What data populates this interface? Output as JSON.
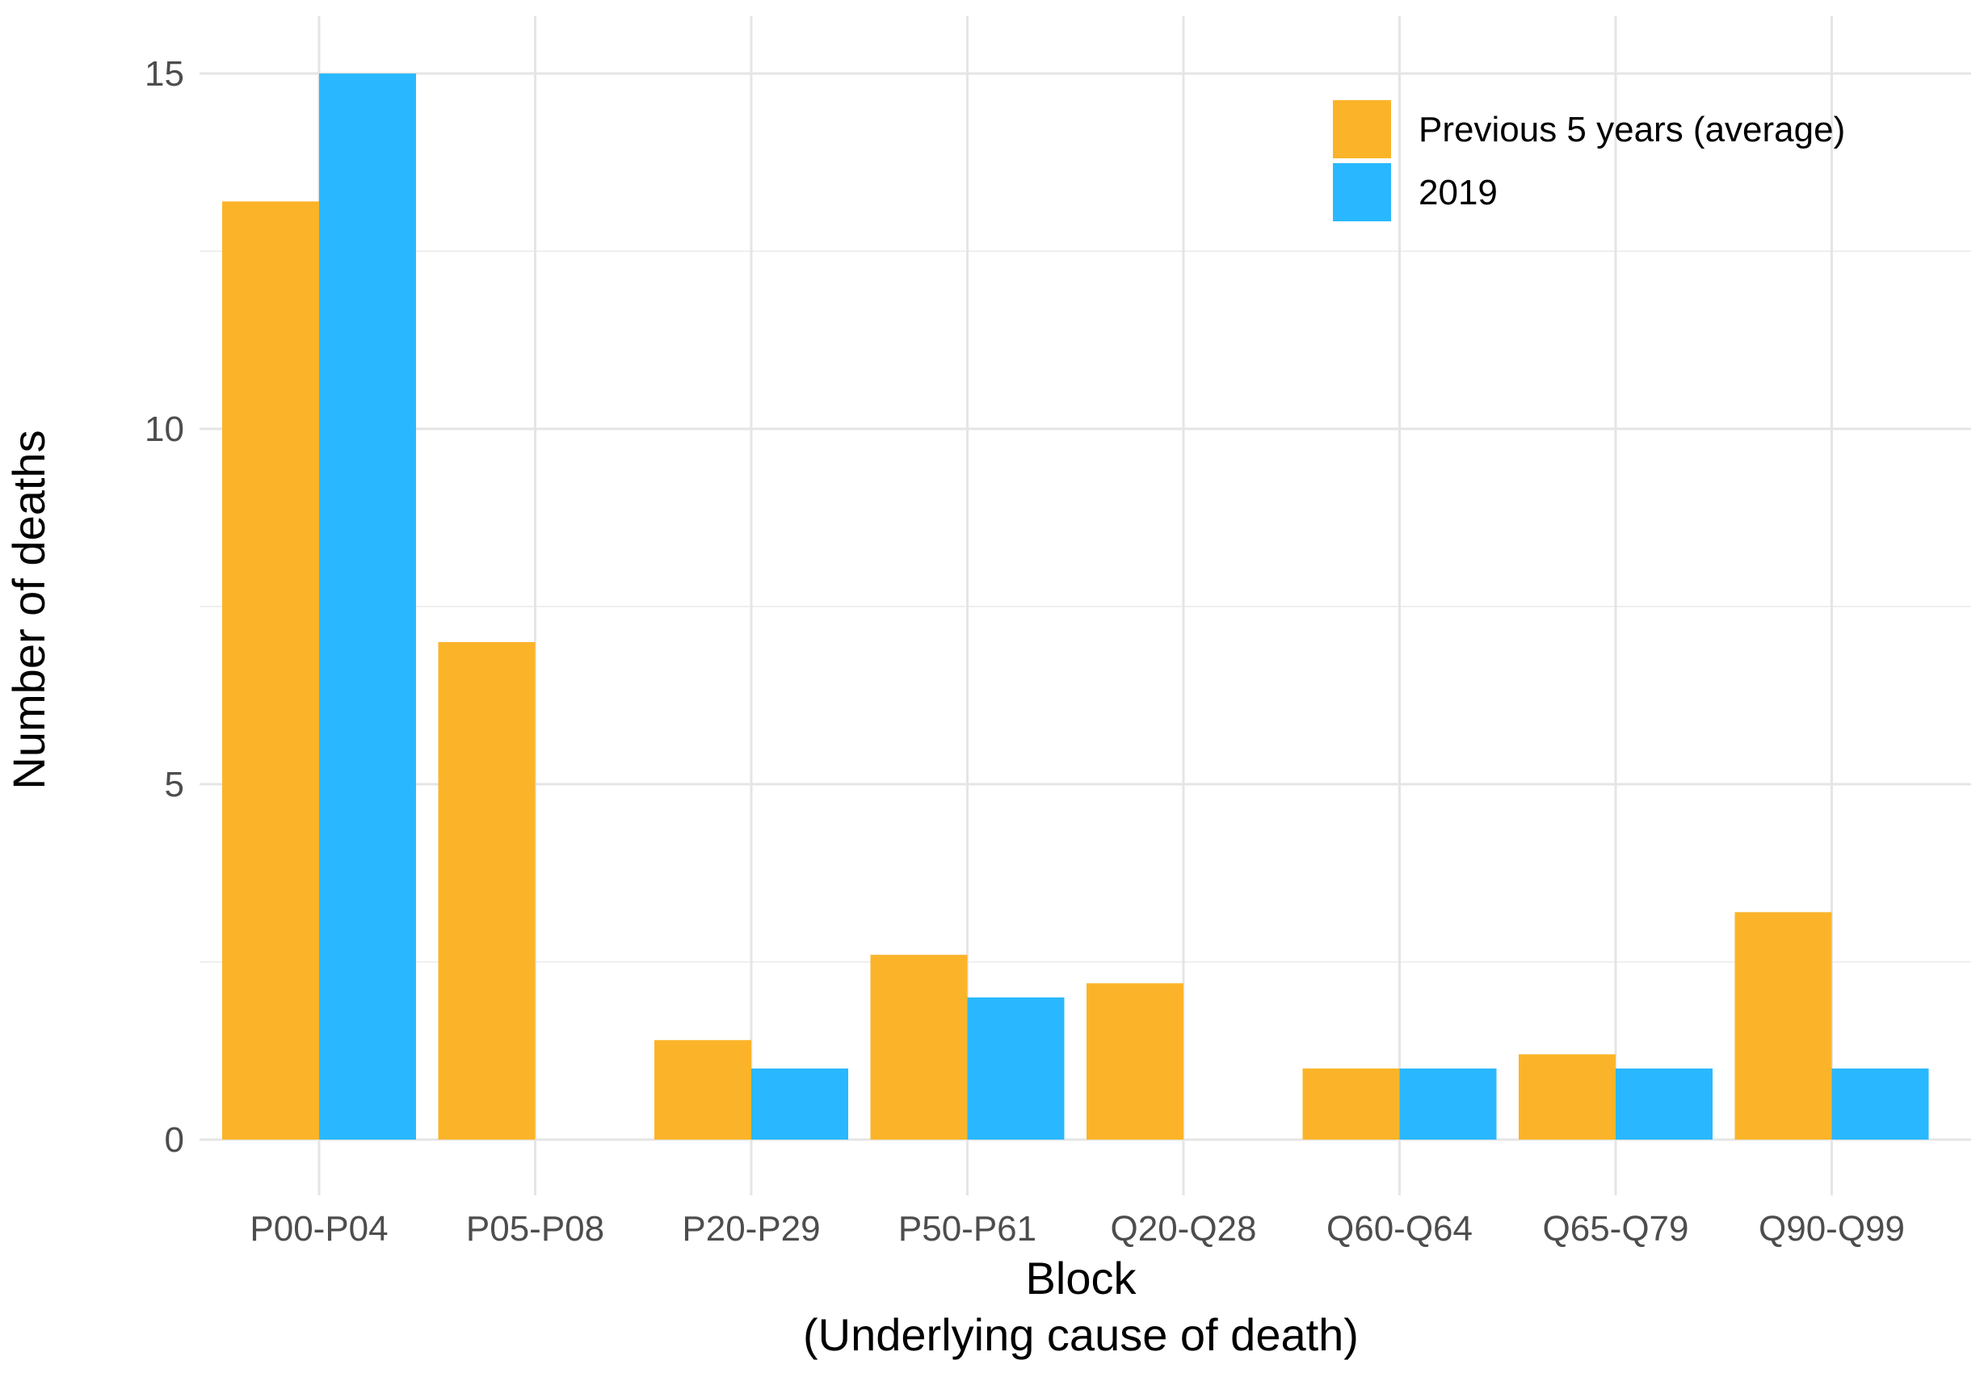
{
  "chart_data": {
    "type": "bar",
    "title": "",
    "xlabel": "Block",
    "xlabel_line2": "(Underlying cause of death)",
    "ylabel": "Number of deaths",
    "categories": [
      "P00-P04",
      "P05-P08",
      "P20-P29",
      "P50-P61",
      "Q20-Q28",
      "Q60-Q64",
      "Q65-Q79",
      "Q90-Q99"
    ],
    "series": [
      {
        "name": "Previous 5 years (average)",
        "color": "#FBB429",
        "values": [
          13.2,
          7.0,
          1.4,
          2.6,
          2.2,
          1.0,
          1.2,
          3.2
        ]
      },
      {
        "name": "2019",
        "color": "#29B8FF",
        "values": [
          15,
          0,
          1,
          2,
          0,
          1,
          1,
          1
        ]
      }
    ],
    "ylim": [
      0,
      15
    ],
    "yticks": [
      0,
      5,
      10,
      15
    ],
    "grid": true,
    "legend_position": "top-right"
  }
}
